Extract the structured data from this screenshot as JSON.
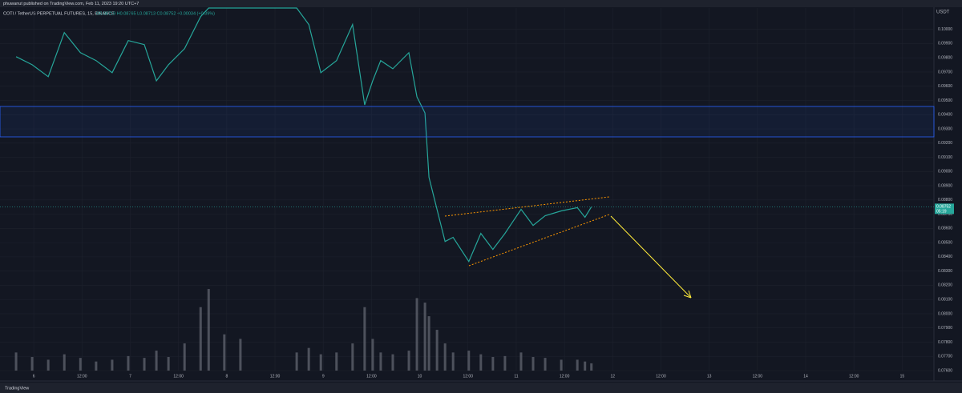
{
  "header": {
    "publisher": "phuwanut published on TradingView.com, Feb 11, 2023 19:20 UTC+7",
    "symbol": "COTI / TetherUS PERPETUAL FUTURES, 15, BINANCE",
    "ohlc": "O0.08719 H0.08765 L0.08713 C0.08752 +0.00034 (+0.39%)"
  },
  "footer": {
    "brand": "TradingView"
  },
  "chart_data": {
    "type": "line",
    "currency": "USDT",
    "last_price": {
      "value": 0.08752,
      "label": "0.08752"
    },
    "countdown": "05:19",
    "xlim": [
      -8.4,
      223.9
    ],
    "xticks": [
      {
        "value": 0,
        "label": "6"
      },
      {
        "value": 12,
        "label": "12:00"
      },
      {
        "value": 24,
        "label": "7"
      },
      {
        "value": 36,
        "label": "12:00"
      },
      {
        "value": 48,
        "label": "8"
      },
      {
        "value": 60,
        "label": "12:00"
      },
      {
        "value": 72,
        "label": "9"
      },
      {
        "value": 84,
        "label": "12:00"
      },
      {
        "value": 96,
        "label": "10"
      },
      {
        "value": 108,
        "label": "12:00"
      },
      {
        "value": 120,
        "label": "11"
      },
      {
        "value": 132,
        "label": "12:00"
      },
      {
        "value": 144,
        "label": "12"
      },
      {
        "value": 156,
        "label": "12:00"
      },
      {
        "value": 168,
        "label": "13"
      },
      {
        "value": 180,
        "label": "12:00"
      },
      {
        "value": 192,
        "label": "14"
      },
      {
        "value": 204,
        "label": "12:00"
      },
      {
        "value": 216,
        "label": "15"
      }
    ],
    "ylim": [
      0.076,
      0.1015
    ],
    "yticks": [
      {
        "value": 0.076,
        "label": "0.07600"
      },
      {
        "value": 0.077,
        "label": "0.07700"
      },
      {
        "value": 0.078,
        "label": "0.07800"
      },
      {
        "value": 0.079,
        "label": "0.07900"
      },
      {
        "value": 0.08,
        "label": "0.08000"
      },
      {
        "value": 0.081,
        "label": "0.08100"
      },
      {
        "value": 0.082,
        "label": "0.08200"
      },
      {
        "value": 0.083,
        "label": "0.08300"
      },
      {
        "value": 0.084,
        "label": "0.08400"
      },
      {
        "value": 0.085,
        "label": "0.08500"
      },
      {
        "value": 0.086,
        "label": "0.08600"
      },
      {
        "value": 0.087,
        "label": "0.08700"
      },
      {
        "value": 0.088,
        "label": "0.08800"
      },
      {
        "value": 0.089,
        "label": "0.08900"
      },
      {
        "value": 0.09,
        "label": "0.09000"
      },
      {
        "value": 0.091,
        "label": "0.09100"
      },
      {
        "value": 0.092,
        "label": "0.09200"
      },
      {
        "value": 0.093,
        "label": "0.09300"
      },
      {
        "value": 0.094,
        "label": "0.09400"
      },
      {
        "value": 0.095,
        "label": "0.09500"
      },
      {
        "value": 0.096,
        "label": "0.09600"
      },
      {
        "value": 0.097,
        "label": "0.09700"
      },
      {
        "value": 0.098,
        "label": "0.09800"
      },
      {
        "value": 0.099,
        "label": "0.09900"
      },
      {
        "value": 0.1,
        "label": "0.10000"
      }
    ],
    "y2lim": [
      0,
      400
    ],
    "grid": true,
    "x": [
      -4.4,
      -0.4,
      3.6,
      7.6,
      11.6,
      15.5,
      19.5,
      23.5,
      27.5,
      30.5,
      33.5,
      37.5,
      41.5,
      43.5,
      47.4,
      51.4,
      65.4,
      68.4,
      71.4,
      75.3,
      79.3,
      82.3,
      84.3,
      86.3,
      89.3,
      93.3,
      95.3,
      97.3,
      98.3,
      100.3,
      102.3,
      104.3,
      108.2,
      111.2,
      114.2,
      117.2,
      121.2,
      124.2,
      127.2,
      131.2,
      135.2,
      137.1,
      138.7
    ],
    "series": [
      {
        "color": "#26a69a",
        "values": [
          0.09808,
          0.09751,
          0.09667,
          0.09977,
          0.09836,
          0.0978,
          0.09695,
          0.09921,
          0.09893,
          0.09638,
          0.09751,
          0.09864,
          0.1009,
          0.1015,
          0.1015,
          0.1015,
          0.1015,
          0.10034,
          0.09695,
          0.0978,
          0.10034,
          0.09469,
          0.09638,
          0.0978,
          0.09723,
          0.09836,
          0.09525,
          0.09412,
          0.0896,
          0.08734,
          0.08508,
          0.08537,
          0.08367,
          0.08565,
          0.08452,
          0.08565,
          0.08734,
          0.08621,
          0.08689,
          0.08723,
          0.08746,
          0.08678,
          0.08752
        ]
      },
      {
        "color": "#5d606b",
        "axis": "y2",
        "values": [
          20,
          15,
          12,
          18,
          14,
          10,
          12,
          16,
          14,
          22,
          15,
          30,
          70,
          90,
          40,
          35,
          20,
          25,
          18,
          20,
          30,
          70,
          35,
          20,
          18,
          22,
          80,
          75,
          60,
          45,
          30,
          20,
          22,
          18,
          15,
          16,
          20,
          15,
          14,
          12,
          12,
          10,
          8
        ]
      }
    ]
  }
}
